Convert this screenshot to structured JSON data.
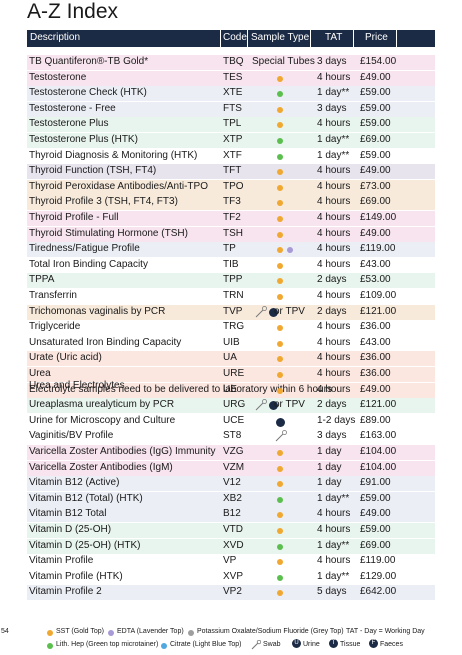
{
  "title": "A-Z Index",
  "headers": {
    "description": "Description",
    "code": "Code",
    "sample_type": "Sample Type",
    "tat": "TAT",
    "price": "Price"
  },
  "colors": {
    "header": "#1c2b45",
    "sst": "#f0a830",
    "edta": "#a79ad6",
    "potassium": "#9e9e9e",
    "green": "#5bbf4e",
    "citrate": "#4fa8e0",
    "urine": "#1c2b45"
  },
  "rows": [
    {
      "desc": "TB Quantiferon®-TB Gold*",
      "code": "TBQ",
      "type_text": "Special Tubes",
      "tat": "3 days",
      "price": "£154.00",
      "bg": "#f7e4ee"
    },
    {
      "desc": "Testosterone",
      "code": "TES",
      "dot": "sst",
      "tat": "4 hours",
      "price": "£49.00",
      "bg": "#f7e4ee"
    },
    {
      "desc": "Testosterone Check (HTK)",
      "code": "XTE",
      "dot": "green",
      "tat": "1 day**",
      "price": "£59.00",
      "bg": "#ebeef5"
    },
    {
      "desc": "Testosterone - Free",
      "code": "FTS",
      "dot": "sst",
      "tat": "3 days",
      "price": "£59.00",
      "bg": "#ebeef5"
    },
    {
      "desc": "Testosterone Plus",
      "code": "TPL",
      "dot": "sst",
      "tat": "4 hours",
      "price": "£59.00",
      "bg": "#e8f4ee"
    },
    {
      "desc": "Testosterone Plus (HTK)",
      "code": "XTP",
      "dot": "green",
      "tat": "1 day**",
      "price": "£69.00",
      "bg": "#e8f4ee"
    },
    {
      "desc": "Thyroid Diagnosis & Monitoring (HTK)",
      "code": "XTF",
      "dot": "green",
      "tat": "1 day**",
      "price": "£59.00",
      "bg": "#ffffff"
    },
    {
      "desc": "Thyroid Function (TSH, FT4)",
      "code": "TFT",
      "dot": "sst",
      "tat": "4 hours",
      "price": "£49.00",
      "bg": "#e8e4ee"
    },
    {
      "desc": "Thyroid Peroxidase Antibodies/Anti-TPO",
      "code": "TPO",
      "dot": "sst",
      "tat": "4 hours",
      "price": "£73.00",
      "bg": "#f7eadb"
    },
    {
      "desc": "Thyroid Profile 3 (TSH, FT4, FT3)",
      "code": "TF3",
      "dot": "sst",
      "tat": "4 hours",
      "price": "£69.00",
      "bg": "#f7eadb"
    },
    {
      "desc": "Thyroid Profile - Full",
      "code": "TF2",
      "dot": "sst",
      "tat": "4 hours",
      "price": "£149.00",
      "bg": "#f7e4ee"
    },
    {
      "desc": "Thyroid Stimulating Hormone (TSH)",
      "code": "TSH",
      "dot": "sst",
      "tat": "4 hours",
      "price": "£49.00",
      "bg": "#f7e4ee"
    },
    {
      "desc": "Tiredness/Fatigue Profile",
      "code": "TP",
      "dot": "sst",
      "dot2": "edta",
      "tat": "4 hours",
      "price": "£119.00",
      "bg": "#ebeef5"
    },
    {
      "desc": "Total Iron Binding Capacity",
      "code": "TIB",
      "dot": "sst",
      "tat": "4 hours",
      "price": "£43.00",
      "bg": "#ffffff"
    },
    {
      "desc": "TPPA",
      "code": "TPP",
      "dot": "sst",
      "tat": "2 days",
      "price": "£53.00",
      "bg": "#e8f4ee"
    },
    {
      "desc": "Transferrin",
      "code": "TRN",
      "dot": "sst",
      "tat": "4 hours",
      "price": "£109.00",
      "bg": "#ffffff"
    },
    {
      "desc": "Trichomonas vaginalis by PCR",
      "code": "TVP",
      "swab": true,
      "urine": true,
      "type_text": "or TPV",
      "tat": "2 days",
      "price": "£121.00",
      "bg": "#f7eadb"
    },
    {
      "desc": "Triglyceride",
      "code": "TRG",
      "dot": "sst",
      "tat": "4 hours",
      "price": "£36.00",
      "bg": "#ffffff"
    },
    {
      "desc": "Unsaturated Iron Binding Capacity",
      "code": "UIB",
      "dot": "sst",
      "tat": "4 hours",
      "price": "£43.00",
      "bg": "#ffffff"
    },
    {
      "desc": "Urate (Uric acid)",
      "code": "UA",
      "dot": "sst",
      "tat": "4 hours",
      "price": "£36.00",
      "bg": "#fbe6e0"
    },
    {
      "desc": "Urea",
      "code": "URE",
      "dot": "sst",
      "tat": "4 hours",
      "price": "£36.00",
      "bg": "#fbe6e0"
    },
    {
      "desc": "Urea and Electrolytes",
      "sub": "Electrolyte samples need to be delivered to laboratory within 6 hours",
      "code": "UE",
      "dot": "sst",
      "tat": "4 hours",
      "price": "£49.00",
      "bg": "#fbe6e0"
    },
    {
      "desc": "Ureaplasma urealyticum by PCR",
      "code": "URG",
      "swab": true,
      "urine": true,
      "type_text": "or TPV",
      "tat": "2 days",
      "price": "£121.00",
      "bg": "#e8f4ee"
    },
    {
      "desc": "Urine for Microscopy and Culture",
      "code": "UCE",
      "urine_only": true,
      "tat": "1-2 days",
      "price": "£89.00",
      "bg": "#ffffff"
    },
    {
      "desc": "Vaginitis/BV Profile",
      "code": "ST8",
      "swab": true,
      "tat": "3 days",
      "price": "£163.00",
      "bg": "#ffffff"
    },
    {
      "desc": "Varicella Zoster Antibodies (IgG) Immunity",
      "code": "VZG",
      "dot": "sst",
      "tat": "1 day",
      "price": "£104.00",
      "bg": "#f7e4ee"
    },
    {
      "desc": "Varicella Zoster Antibodies (IgM)",
      "code": "VZM",
      "dot": "sst",
      "tat": "1 day",
      "price": "£104.00",
      "bg": "#f7e4ee"
    },
    {
      "desc": "Vitamin B12 (Active)",
      "code": "V12",
      "dot": "sst",
      "tat": "1 day",
      "price": "£91.00",
      "bg": "#ebeef5"
    },
    {
      "desc": "Vitamin B12 (Total) (HTK)",
      "code": "XB2",
      "dot": "green",
      "tat": "1 day**",
      "price": "£59.00",
      "bg": "#ebeef5"
    },
    {
      "desc": "Vitamin B12 Total",
      "code": "B12",
      "dot": "sst",
      "tat": "4 hours",
      "price": "£49.00",
      "bg": "#ebeef5"
    },
    {
      "desc": "Vitamin D (25-OH)",
      "code": "VTD",
      "dot": "sst",
      "tat": "4 hours",
      "price": "£59.00",
      "bg": "#e8f4ee"
    },
    {
      "desc": "Vitamin D (25-OH) (HTK)",
      "code": "XVD",
      "dot": "green",
      "tat": "1 day**",
      "price": "£69.00",
      "bg": "#e8f4ee"
    },
    {
      "desc": "Vitamin Profile",
      "code": "VP",
      "dot": "sst",
      "tat": "4 hours",
      "price": "£119.00",
      "bg": "#ffffff"
    },
    {
      "desc": "Vitamin Profile (HTK)",
      "code": "XVP",
      "dot": "green",
      "tat": "1 day**",
      "price": "£129.00",
      "bg": "#ffffff"
    },
    {
      "desc": "Vitamin Profile 2",
      "code": "VP2",
      "dot": "sst",
      "tat": "5 days",
      "price": "£642.00",
      "bg": "#ebeef5"
    }
  ],
  "footer": {
    "page": "54",
    "sst": "SST (Gold Top)",
    "edta": "EDTA (Lavender Top)",
    "potassium": "Potassium Oxalate/Sodium Fluoride (Grey Top)",
    "tat_note": "TAT - Day = Working Day",
    "lith": "Lith. Hep (Green top microtainer)",
    "citrate": "Citrate (Light Blue Top)",
    "swab": "Swab",
    "urine": "Urine",
    "tissue": "Tissue",
    "faeces": "Faeces",
    "urine_letter": "U",
    "tissue_letter": "T",
    "faeces_letter": "F"
  }
}
